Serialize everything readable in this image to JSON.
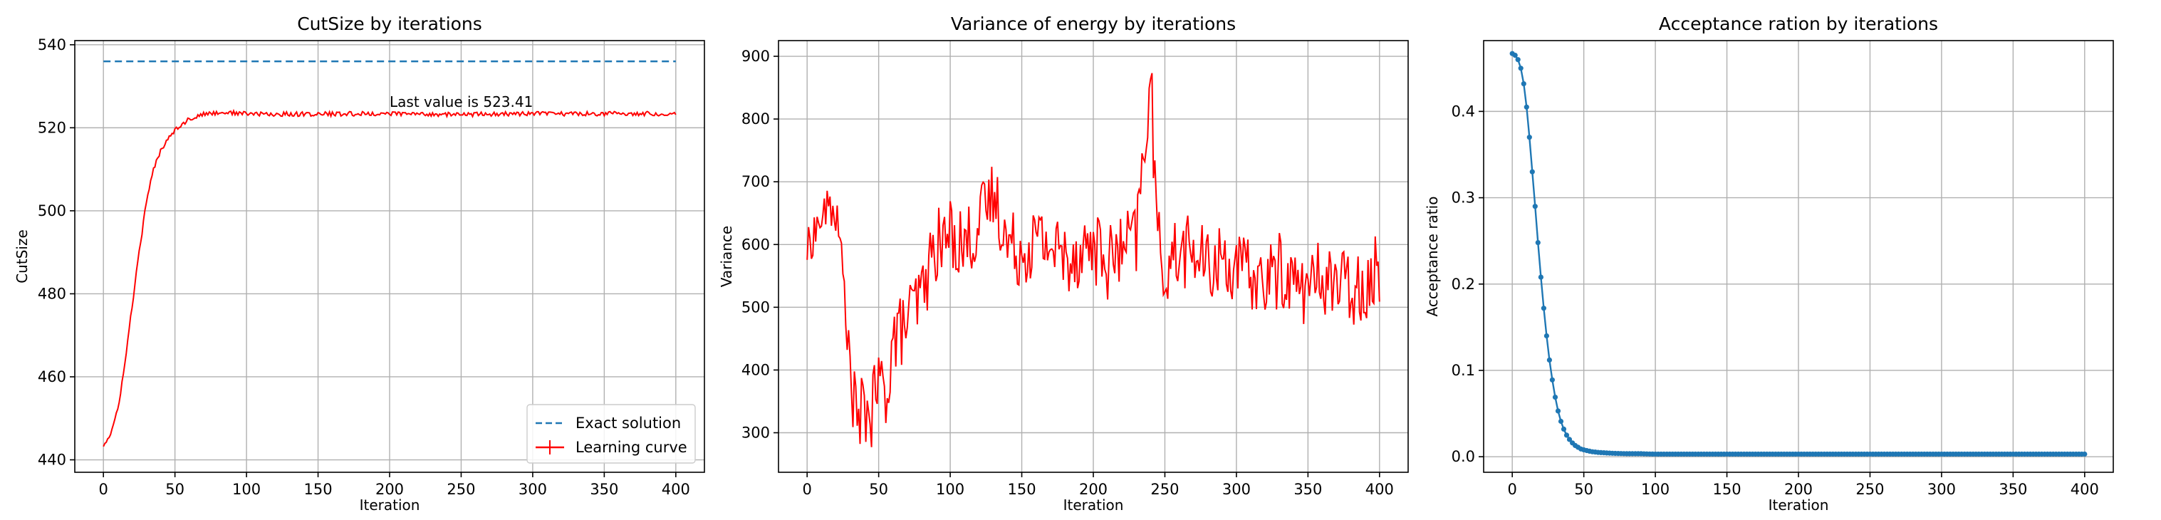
{
  "chart_data": [
    {
      "type": "line",
      "title": "CutSize by iterations",
      "xlabel": "Iteration",
      "ylabel": "CutSize",
      "xlim": [
        -20,
        420
      ],
      "ylim": [
        437,
        541
      ],
      "xticks": [
        0,
        50,
        100,
        150,
        200,
        250,
        300,
        350,
        400
      ],
      "yticks": [
        440,
        460,
        480,
        500,
        520,
        540
      ],
      "grid": true,
      "legend": "lower-right",
      "annotation": {
        "text": "Last value is 523.41",
        "x": 200,
        "y": 525
      },
      "series": [
        {
          "name": "Exact solution",
          "style": "dashed",
          "color": "#1f77b4",
          "x": [
            0,
            400
          ],
          "y": [
            536,
            536
          ]
        },
        {
          "name": "Learning curve",
          "style": "solid",
          "color": "#ff0000",
          "x": [
            0,
            5,
            10,
            15,
            20,
            25,
            30,
            35,
            40,
            45,
            50,
            55,
            60,
            65,
            70,
            75,
            80,
            85,
            90,
            100,
            110,
            120,
            130,
            150,
            200,
            250,
            300,
            350,
            400
          ],
          "y": [
            443.5,
            446,
            452,
            463,
            477,
            490,
            502,
            510,
            514.5,
            517.5,
            519.5,
            521,
            522,
            522.8,
            523.2,
            523.5,
            523.6,
            523.7,
            523.6,
            523.4,
            523.3,
            523.2,
            523.3,
            523.3,
            523.4,
            523.2,
            523.4,
            523.4,
            523.41
          ]
        }
      ]
    },
    {
      "type": "line",
      "title": "Variance of energy by iterations",
      "xlabel": "Iteration",
      "ylabel": "Variance",
      "xlim": [
        -20,
        420
      ],
      "ylim": [
        237,
        925
      ],
      "xticks": [
        0,
        50,
        100,
        150,
        200,
        250,
        300,
        350,
        400
      ],
      "yticks": [
        300,
        400,
        500,
        600,
        700,
        800,
        900
      ],
      "grid": true,
      "series": [
        {
          "name": "Variance",
          "style": "solid",
          "color": "#ff0000",
          "x": [
            0,
            5,
            10,
            15,
            20,
            25,
            30,
            35,
            40,
            45,
            50,
            55,
            60,
            65,
            70,
            75,
            80,
            85,
            90,
            95,
            100,
            110,
            120,
            130,
            135,
            140,
            150,
            160,
            170,
            180,
            190,
            200,
            210,
            220,
            230,
            236,
            240,
            245,
            250,
            260,
            270,
            280,
            290,
            300,
            310,
            320,
            330,
            340,
            350,
            360,
            370,
            380,
            390,
            400
          ],
          "y": [
            590,
            620,
            640,
            660,
            650,
            560,
            400,
            310,
            340,
            330,
            380,
            360,
            450,
            460,
            480,
            500,
            520,
            560,
            600,
            600,
            620,
            600,
            630,
            680,
            650,
            600,
            590,
            610,
            600,
            580,
            590,
            600,
            570,
            590,
            610,
            760,
            870,
            600,
            560,
            590,
            590,
            560,
            580,
            560,
            550,
            540,
            560,
            540,
            530,
            550,
            540,
            530,
            540,
            560
          ]
        }
      ]
    },
    {
      "type": "line",
      "title": "Acceptance ration by iterations",
      "xlabel": "Iteration",
      "ylabel": "Acceptance ratio",
      "xlim": [
        -20,
        420
      ],
      "ylim": [
        -0.018,
        0.482
      ],
      "xticks": [
        0,
        50,
        100,
        150,
        200,
        250,
        300,
        350,
        400
      ],
      "yticks": [
        0.0,
        0.1,
        0.2,
        0.3,
        0.4
      ],
      "ytick_labels": [
        "0.0",
        "0.1",
        "0.2",
        "0.3",
        "0.4"
      ],
      "grid": true,
      "series": [
        {
          "name": "Acceptance ratio",
          "style": "solid-markers",
          "color": "#1f77b4",
          "x": [
            0,
            2,
            4,
            6,
            8,
            10,
            12,
            14,
            16,
            18,
            20,
            22,
            24,
            26,
            28,
            30,
            32,
            34,
            36,
            38,
            40,
            42,
            44,
            46,
            48,
            50,
            55,
            60,
            65,
            70,
            80,
            90,
            100,
            150,
            200,
            250,
            300,
            350,
            400
          ],
          "y": [
            0.467,
            0.465,
            0.46,
            0.45,
            0.432,
            0.405,
            0.37,
            0.33,
            0.29,
            0.248,
            0.208,
            0.172,
            0.14,
            0.112,
            0.089,
            0.069,
            0.053,
            0.041,
            0.032,
            0.025,
            0.02,
            0.016,
            0.013,
            0.011,
            0.009,
            0.008,
            0.006,
            0.005,
            0.0045,
            0.004,
            0.0035,
            0.0035,
            0.003,
            0.003,
            0.003,
            0.003,
            0.003,
            0.003,
            0.003
          ]
        }
      ]
    }
  ]
}
